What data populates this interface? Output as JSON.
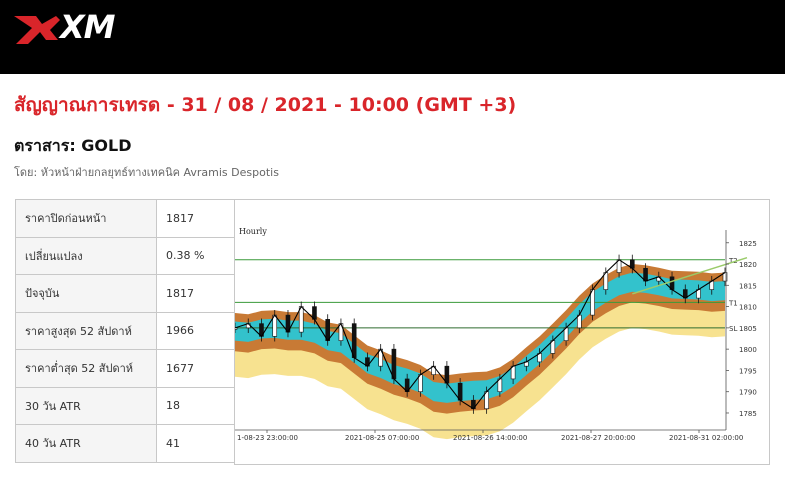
{
  "brand": {
    "logo_text": "XM"
  },
  "header": {
    "title": "สัญญาณการเทรด - 31 / 08 / 2021 - 10:00 (GMT +3)",
    "instrument": "ตราสาร: GOLD",
    "byline": "โดย: หัวหน้าฝ่ายกลยุทธ์ทางเทคนิค Avramis Despotis"
  },
  "stats": [
    {
      "label": "ราคาปิดก่อนหน้า",
      "value": "1817"
    },
    {
      "label": "เปลี่ยนแปลง",
      "value": "0.38 %"
    },
    {
      "label": "ปัจจุบัน",
      "value": "1817"
    },
    {
      "label": "ราคาสูงสุด 52 สัปดาห์",
      "value": "1966"
    },
    {
      "label": "ราคาต่ำสุด 52 สัปดาห์",
      "value": "1677"
    },
    {
      "label": "30 วัน ATR",
      "value": "18"
    },
    {
      "label": "40 วัน ATR",
      "value": "41"
    }
  ],
  "colors": {
    "accent_red": "#d9252a",
    "band_cyan": "#33c2cc",
    "band_brown": "#c87a35",
    "band_yellow": "#f7e290",
    "level_green": "#3a9a3a"
  },
  "chart_data": {
    "type": "line",
    "timeframe_label": "Hourly",
    "x_ticks": [
      "1-08-23 23:00:00",
      "2021-08-25 07:00:00",
      "2021-08-26 14:00:00",
      "2021-08-27 20:00:00",
      "2021-08-31 02:00:00"
    ],
    "y_ticks": [
      1825,
      1820,
      1815,
      1810,
      1805,
      1800,
      1795,
      1790,
      1785
    ],
    "ylim": [
      1781,
      1828
    ],
    "levels": [
      {
        "name": "T2",
        "value": 1821
      },
      {
        "name": "T1",
        "value": 1811
      },
      {
        "name": "SL",
        "value": 1805
      }
    ],
    "series": [
      {
        "values": [
          1805,
          1806,
          1803,
          1808,
          1804,
          1810,
          1807,
          1802,
          1806,
          1798,
          1796,
          1800,
          1793,
          1790,
          1794,
          1796,
          1792,
          1788,
          1786,
          1790,
          1793,
          1796,
          1797,
          1799,
          1802,
          1805,
          1808,
          1814,
          1818,
          1821,
          1819,
          1816,
          1817,
          1814,
          1812,
          1814,
          1816,
          1818
        ]
      }
    ]
  }
}
